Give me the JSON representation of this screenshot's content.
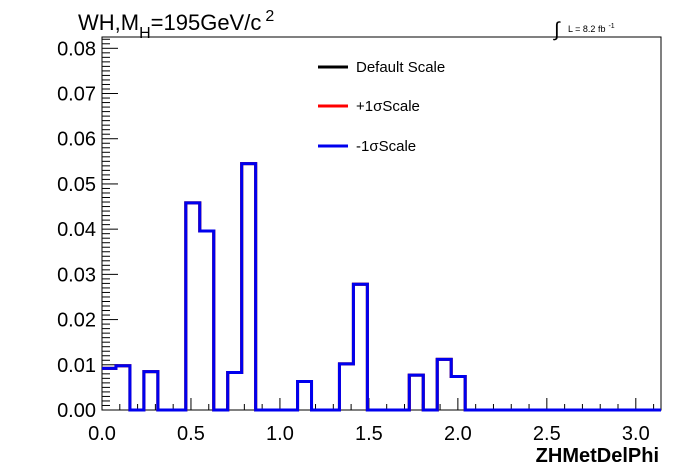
{
  "chart_data": {
    "type": "line",
    "title_main": "WH,M",
    "title_sub": "H",
    "title_rest": "=195GeV/c",
    "title_sup": "2",
    "lumi_label": "L = 8.2 fb",
    "lumi_sup": "-1",
    "lumi_integral": "∫",
    "xlabel": "ZHMetDelPhi",
    "ylabel": "",
    "xlim": [
      0.0,
      3.1416
    ],
    "ylim": [
      0.0,
      0.0825
    ],
    "xticks": [
      "0.0",
      "0.5",
      "1.0",
      "1.5",
      "2.0",
      "2.5",
      "3.0"
    ],
    "xtick_values": [
      0.0,
      0.5,
      1.0,
      1.5,
      2.0,
      2.5,
      3.0
    ],
    "yticks": [
      "0.00",
      "0.01",
      "0.02",
      "0.03",
      "0.04",
      "0.05",
      "0.06",
      "0.07",
      "0.08"
    ],
    "ytick_values": [
      0.0,
      0.01,
      0.02,
      0.03,
      0.04,
      0.05,
      0.06,
      0.07,
      0.08
    ],
    "bin_width": 0.0785,
    "legend_position": "top-center",
    "series": [
      {
        "name": "Default Scale",
        "color": "#000000",
        "values": [
          0.0092,
          0.0098,
          0.0,
          0.0085,
          0.0,
          0.0,
          0.0458,
          0.0396,
          0.0,
          0.0083,
          0.0545,
          0.0,
          0.0,
          0.0,
          0.0063,
          0.0,
          0.0,
          0.0102,
          0.0278,
          0.0,
          0.0,
          0.0,
          0.0077,
          0.0,
          0.0112,
          0.0074,
          0.0,
          0.0,
          0.0,
          0.0,
          0.0,
          0.0,
          0.0,
          0.0,
          0.0,
          0.0,
          0.0,
          0.0,
          0.0,
          0.0,
          0.0
        ]
      },
      {
        "name": "+1σScale",
        "color": "#ff0000",
        "values": [
          0.0092,
          0.0098,
          0.0,
          0.0085,
          0.0,
          0.0,
          0.0458,
          0.0396,
          0.0,
          0.0083,
          0.0545,
          0.0,
          0.0,
          0.0,
          0.0063,
          0.0,
          0.0,
          0.0102,
          0.0278,
          0.0,
          0.0,
          0.0,
          0.0077,
          0.0,
          0.0112,
          0.0074,
          0.0,
          0.0,
          0.0,
          0.0,
          0.0,
          0.0,
          0.0,
          0.0,
          0.0,
          0.0,
          0.0,
          0.0,
          0.0,
          0.0,
          0.0
        ]
      },
      {
        "name": "-1σScale",
        "color": "#0000ee",
        "values": [
          0.0092,
          0.0098,
          0.0,
          0.0085,
          0.0,
          0.0,
          0.0458,
          0.0396,
          0.0,
          0.0083,
          0.0545,
          0.0,
          0.0,
          0.0,
          0.0063,
          0.0,
          0.0,
          0.0102,
          0.0278,
          0.0,
          0.0,
          0.0,
          0.0077,
          0.0,
          0.0112,
          0.0074,
          0.0,
          0.0,
          0.0,
          0.0,
          0.0,
          0.0,
          0.0,
          0.0,
          0.0,
          0.0,
          0.0,
          0.0,
          0.0,
          0.0,
          0.0
        ]
      }
    ]
  }
}
